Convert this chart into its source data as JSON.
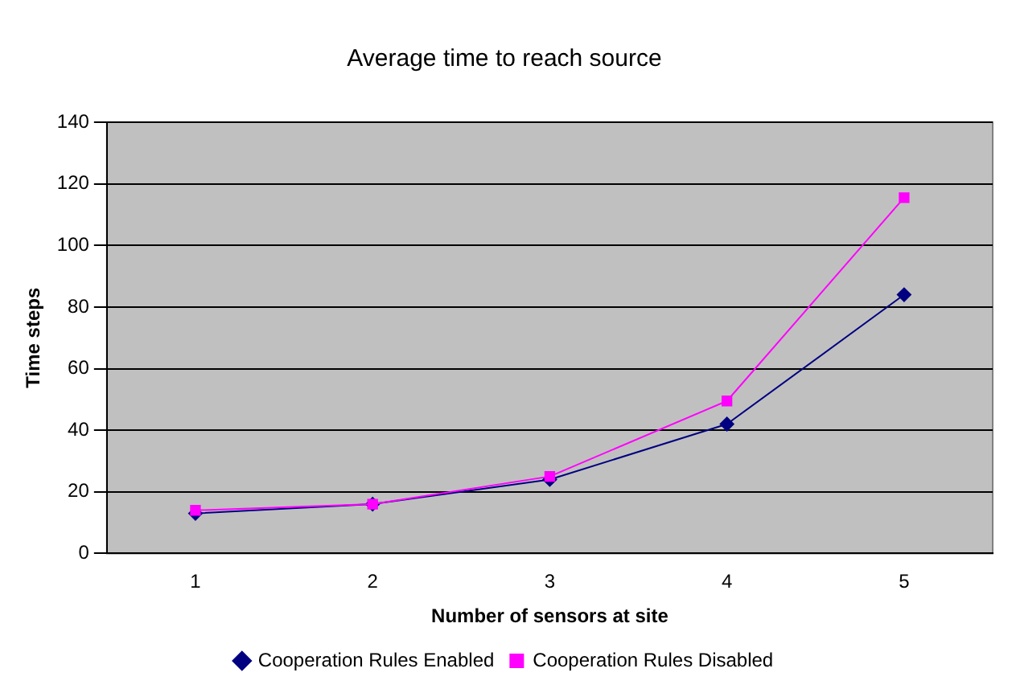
{
  "chart_data": {
    "type": "line",
    "title": "Average time to reach source",
    "xlabel": "Number of sensors at site",
    "ylabel": "Time steps",
    "categories": [
      "1",
      "2",
      "3",
      "4",
      "5"
    ],
    "series": [
      {
        "name": "Cooperation Rules Enabled",
        "color": "#000080",
        "marker": "diamond",
        "values": [
          13,
          16,
          24,
          42,
          84
        ]
      },
      {
        "name": "Cooperation Rules Disabled",
        "color": "#ff00ff",
        "marker": "square",
        "values": [
          14,
          16,
          25,
          49.5,
          115.5
        ]
      }
    ],
    "ylim": [
      0,
      140
    ],
    "yticks": [
      0,
      20,
      40,
      60,
      80,
      100,
      120,
      140
    ],
    "grid": "y",
    "legend": "bottom",
    "line_style": "solid"
  }
}
